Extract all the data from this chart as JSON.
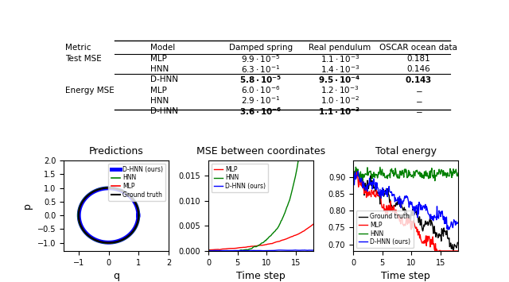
{
  "table": {
    "col_headers": [
      "Metric",
      "Model",
      "Damped spring",
      "Real pendulum",
      "OSCAR ocean data"
    ],
    "rows": [
      [
        "Test MSE",
        "MLP",
        "$9.9 \\cdot 10^{-5}$",
        "$1.1 \\cdot 10^{-3}$",
        "0.181"
      ],
      [
        "",
        "HNN",
        "$6.3 \\cdot 10^{-1}$",
        "$1.4 \\cdot 10^{-3}$",
        "0.146"
      ],
      [
        "",
        "D-HNN",
        "$\\mathbf{5.8 \\cdot 10^{-5}}$",
        "$\\mathbf{9.5 \\cdot 10^{-4}}$",
        "0.143"
      ],
      [
        "Energy MSE",
        "MLP",
        "$6.0 \\cdot 10^{-6}$",
        "$1.2 \\cdot 10^{-3}$",
        "--"
      ],
      [
        "",
        "HNN",
        "$2.9 \\cdot 10^{-1}$",
        "$1.0 \\cdot 10^{-2}$",
        "--"
      ],
      [
        "",
        "D-HNN",
        "$\\mathbf{3.6 \\cdot 10^{-6}}$",
        "$\\mathbf{1.1 \\cdot 10^{-3}}$",
        "--"
      ]
    ]
  },
  "plot1_title": "Predictions",
  "plot1_xlabel": "q",
  "plot1_ylabel": "p",
  "plot1_xlim": [
    -1.5,
    2.0
  ],
  "plot1_ylim": [
    -1.3,
    2.0
  ],
  "plot1_xticks": [
    -1,
    0,
    1,
    2
  ],
  "plot1_yticks": [
    -1.0,
    -0.5,
    0.0,
    0.5,
    1.0,
    1.5,
    2.0
  ],
  "plot2_title": "MSE between coordinates",
  "plot2_xlabel": "Time step",
  "plot2_xlim": [
    0,
    18
  ],
  "plot2_ylim": [
    0,
    0.018
  ],
  "plot2_yticks": [
    0.0,
    0.005,
    0.01,
    0.015
  ],
  "plot3_title": "Total energy",
  "plot3_xlabel": "Time step",
  "plot3_xlim": [
    0,
    18
  ],
  "plot3_ylim": [
    0.68,
    0.95
  ],
  "plot3_yticks": [
    0.7,
    0.75,
    0.8,
    0.85,
    0.9
  ],
  "colors": {
    "ground_truth": "#000000",
    "mlp": "#ff0000",
    "hnn": "#008000",
    "dhnn": "#0000ff"
  },
  "seed": 42
}
